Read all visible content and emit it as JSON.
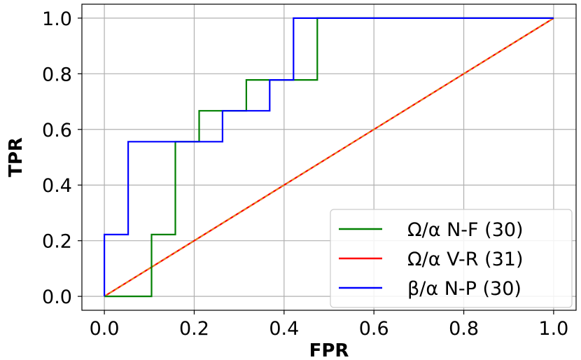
{
  "chart_data": {
    "type": "line",
    "xlabel": "FPR",
    "ylabel": "TPR",
    "xlim": [
      -0.05,
      1.05
    ],
    "ylim": [
      -0.05,
      1.05
    ],
    "xticks": [
      "0.0",
      "0.2",
      "0.4",
      "0.6",
      "0.8",
      "1.0"
    ],
    "yticks": [
      "0.0",
      "0.2",
      "0.4",
      "0.6",
      "0.8",
      "1.0"
    ],
    "grid": true,
    "legend_position": "bottom-right",
    "series": [
      {
        "name": "Ω/α N-F (30)",
        "color": "#008000",
        "step": true,
        "x": [
          0.0,
          0.105,
          0.105,
          0.158,
          0.158,
          0.211,
          0.211,
          0.316,
          0.316,
          0.474,
          0.474,
          1.0
        ],
        "y": [
          0.0,
          0.0,
          0.222,
          0.222,
          0.556,
          0.556,
          0.667,
          0.667,
          0.778,
          0.778,
          1.0,
          1.0
        ]
      },
      {
        "name": "Ω/α V-R (31)",
        "color": "#ff0000",
        "dashed_overlay": "#d4a017",
        "step": false,
        "x": [
          0.0,
          1.0
        ],
        "y": [
          0.0,
          1.0
        ]
      },
      {
        "name": "β/α N-P (30)",
        "color": "#0000ff",
        "step": true,
        "x": [
          0.0,
          0.0,
          0.053,
          0.053,
          0.263,
          0.263,
          0.368,
          0.368,
          0.421,
          0.421,
          1.0
        ],
        "y": [
          0.0,
          0.222,
          0.222,
          0.556,
          0.556,
          0.667,
          0.667,
          0.778,
          0.778,
          1.0,
          1.0
        ]
      }
    ]
  }
}
